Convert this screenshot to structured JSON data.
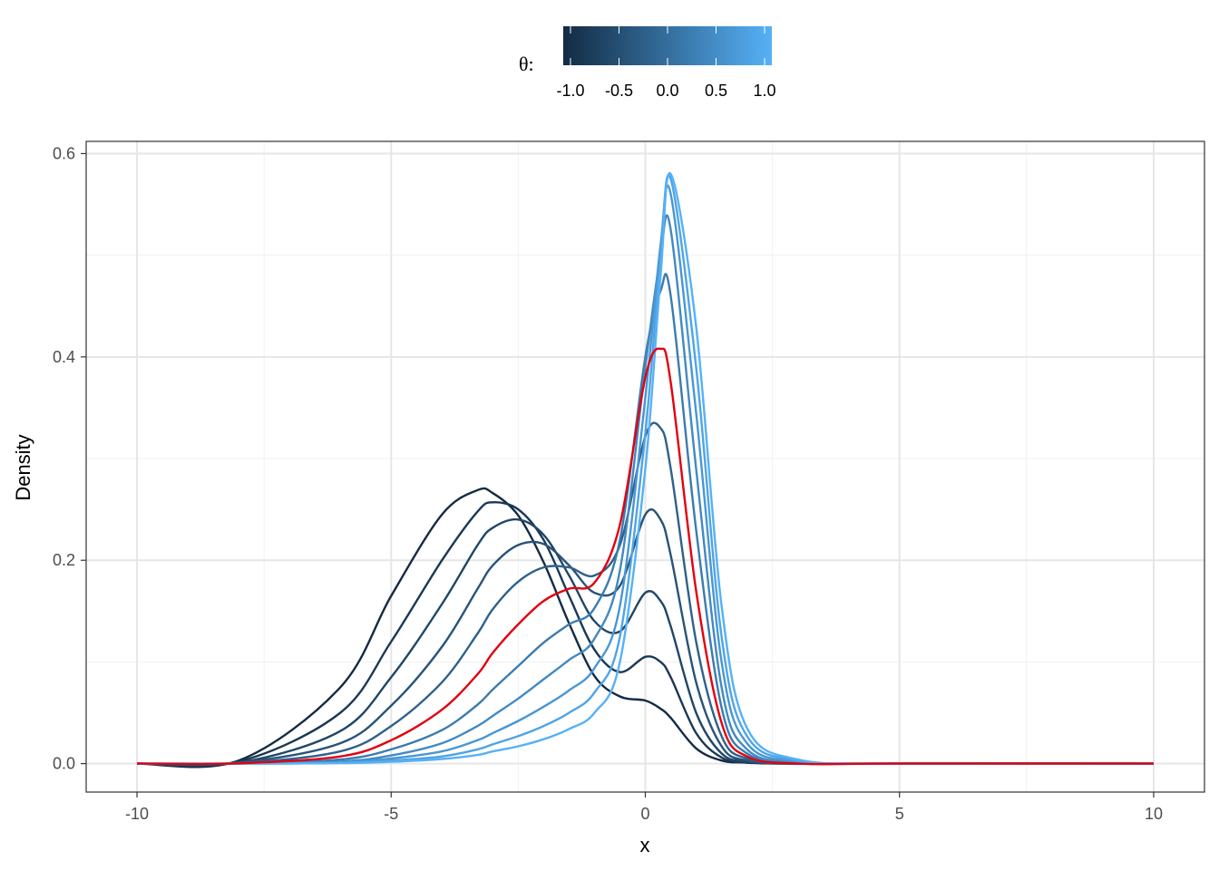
{
  "chart_data": {
    "type": "line",
    "xlabel": "x",
    "ylabel": "Density",
    "xlim": [
      -11,
      11
    ],
    "ylim": [
      -0.028,
      0.612
    ],
    "x_ticks": [
      -10,
      -5,
      0,
      5,
      10
    ],
    "x_tick_labels": [
      "-10",
      "-5",
      "0",
      "5",
      "10"
    ],
    "y_ticks": [
      0.0,
      0.2,
      0.4,
      0.6
    ],
    "y_tick_labels": [
      "0.0",
      "0.2",
      "0.4",
      "0.6"
    ],
    "grid": true,
    "legend": {
      "title": "θ:",
      "placement": "top",
      "type": "colorbar",
      "range": [
        -1,
        1
      ],
      "ticks": [
        -1.0,
        -0.5,
        0.0,
        0.5,
        1.0
      ],
      "tick_labels": [
        "-1.0",
        "-0.5",
        "0.0",
        "0.5",
        "1.0"
      ],
      "color_low": "#132b43",
      "color_high": "#56b1f7"
    },
    "highlight_color": "#e3000f",
    "highlight_theta": 0.0,
    "x_sample": [
      -10,
      -8,
      -6,
      -5,
      -4,
      -3.3,
      -3,
      -2.5,
      -2,
      -1.5,
      -1,
      -0.5,
      0,
      0.3,
      0.5,
      1,
      1.5,
      2,
      3,
      5,
      10
    ],
    "series": [
      {
        "theta": -1.0,
        "values": [
          0,
          0.003,
          0.075,
          0.165,
          0.245,
          0.269,
          0.266,
          0.244,
          0.198,
          0.138,
          0.086,
          0.066,
          0.062,
          0.054,
          0.045,
          0.015,
          0.003,
          0.001,
          0,
          0,
          0
        ]
      },
      {
        "theta": -0.8,
        "values": [
          0,
          0.002,
          0.05,
          0.12,
          0.2,
          0.248,
          0.257,
          0.25,
          0.22,
          0.165,
          0.112,
          0.09,
          0.105,
          0.1,
          0.085,
          0.03,
          0.006,
          0.001,
          0,
          0,
          0
        ]
      },
      {
        "theta": -0.6,
        "values": [
          0,
          0.001,
          0.032,
          0.085,
          0.157,
          0.215,
          0.232,
          0.24,
          0.225,
          0.185,
          0.14,
          0.13,
          0.168,
          0.16,
          0.135,
          0.05,
          0.01,
          0.002,
          0,
          0,
          0
        ]
      },
      {
        "theta": -0.4,
        "values": [
          0,
          0.001,
          0.02,
          0.057,
          0.115,
          0.172,
          0.195,
          0.215,
          0.216,
          0.195,
          0.168,
          0.175,
          0.245,
          0.24,
          0.205,
          0.08,
          0.017,
          0.003,
          0,
          0,
          0
        ]
      },
      {
        "theta": -0.2,
        "values": [
          0,
          0.0005,
          0.012,
          0.037,
          0.08,
          0.128,
          0.152,
          0.179,
          0.193,
          0.193,
          0.185,
          0.215,
          0.322,
          0.33,
          0.29,
          0.12,
          0.027,
          0.005,
          0,
          0,
          0
        ]
      },
      {
        "theta": 0.0,
        "values": [
          0,
          0.0003,
          0.007,
          0.023,
          0.053,
          0.088,
          0.109,
          0.137,
          0.16,
          0.172,
          0.178,
          0.235,
          0.38,
          0.408,
          0.375,
          0.17,
          0.04,
          0.007,
          0,
          0,
          0
        ]
      },
      {
        "theta": 0.2,
        "values": [
          0,
          0.0002,
          0.004,
          0.014,
          0.033,
          0.058,
          0.073,
          0.096,
          0.119,
          0.137,
          0.153,
          0.22,
          0.4,
          0.465,
          0.46,
          0.23,
          0.055,
          0.01,
          0.001,
          0,
          0
        ]
      },
      {
        "theta": 0.4,
        "values": [
          0,
          0.0001,
          0.002,
          0.008,
          0.02,
          0.037,
          0.047,
          0.064,
          0.083,
          0.102,
          0.123,
          0.19,
          0.39,
          0.5,
          0.525,
          0.29,
          0.075,
          0.014,
          0.001,
          0,
          0
        ]
      },
      {
        "theta": 0.6,
        "values": [
          0,
          0.0001,
          0.0012,
          0.005,
          0.012,
          0.023,
          0.03,
          0.042,
          0.056,
          0.072,
          0.094,
          0.155,
          0.36,
          0.51,
          0.56,
          0.345,
          0.1,
          0.02,
          0.002,
          0,
          0
        ]
      },
      {
        "theta": 0.8,
        "values": [
          0,
          0,
          0.0007,
          0.003,
          0.007,
          0.014,
          0.019,
          0.027,
          0.037,
          0.05,
          0.07,
          0.125,
          0.325,
          0.5,
          0.575,
          0.39,
          0.125,
          0.027,
          0.003,
          0,
          0
        ]
      },
      {
        "theta": 1.0,
        "values": [
          0,
          0,
          0.0004,
          0.0018,
          0.0045,
          0.0085,
          0.012,
          0.017,
          0.024,
          0.034,
          0.05,
          0.1,
          0.29,
          0.48,
          0.58,
          0.43,
          0.155,
          0.035,
          0.004,
          0,
          0
        ]
      }
    ]
  }
}
